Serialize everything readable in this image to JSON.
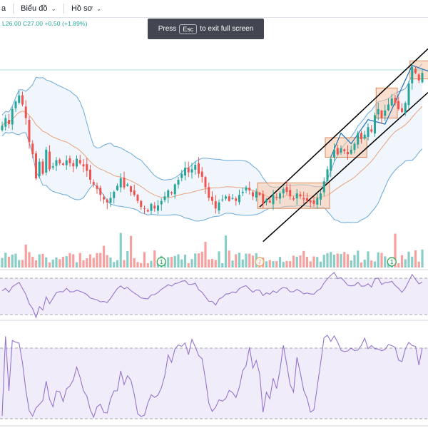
{
  "toolbar": {
    "partial_label": "a",
    "chart_menu_label": "Biểu đồ",
    "profile_menu_label": "Hồ sơ"
  },
  "ohlc_line": "L26.00  C27.00  +0.50 (+1.89%)",
  "notice": {
    "prefix": "Press",
    "key": "Esc",
    "suffix": "to exit full screen"
  },
  "colors": {
    "up": "#26a69a",
    "down": "#ef5350",
    "band": "#6aa9d8",
    "band_fill": "#e3eef9",
    "ma": "#e8a37c",
    "osc_line": "#9575cd",
    "osc_fill": "#f1ecf9"
  },
  "chart_data": {
    "type": "candlestick",
    "price_panel": {
      "closes": [
        23.5,
        24.0,
        23.6,
        24.6,
        25.1,
        25.5,
        24.9,
        24.0,
        22.4,
        21.6,
        20.0,
        21.1,
        20.3,
        21.9,
        20.6,
        20.8,
        21.2,
        21.0,
        20.9,
        21.2,
        21.0,
        20.8,
        21.3,
        21.0,
        20.8,
        20.5,
        19.9,
        19.6,
        19.3,
        18.9,
        18.6,
        18.4,
        18.7,
        19.1,
        19.5,
        20.0,
        19.4,
        19.6,
        19.1,
        18.9,
        18.5,
        18.1,
        18.0,
        17.8,
        18.3,
        18.0,
        18.2,
        18.5,
        18.8,
        19.2,
        19.0,
        19.6,
        19.9,
        20.3,
        20.7,
        20.4,
        20.6,
        20.9,
        20.3,
        20.1,
        19.4,
        18.7,
        18.5,
        18.0,
        18.4,
        18.6,
        18.8,
        18.5,
        18.7,
        18.5,
        18.9,
        19.1,
        19.4,
        19.2,
        18.8,
        19.1,
        18.9,
        18.3,
        18.6,
        18.4,
        18.9,
        18.7,
        19.0,
        19.3,
        19.1,
        18.8,
        18.6,
        19.0,
        18.8,
        18.6,
        18.5,
        18.4,
        18.3,
        18.7,
        19.0,
        19.8,
        20.6,
        21.3,
        21.9,
        21.6,
        22.0,
        21.8,
        21.6,
        21.9,
        22.3,
        23.0,
        22.6,
        22.9,
        23.4,
        23.1,
        24.2,
        24.6,
        24.0,
        24.5,
        24.9,
        25.3,
        25.0,
        24.6,
        24.4,
        25.0,
        26.3,
        27.4,
        27.0,
        26.5,
        27.0
      ],
      "volume_markers": [
        "1",
        "7",
        "1"
      ]
    },
    "oscillator_1": {
      "bands": [
        "upper",
        "lower"
      ]
    },
    "oscillator_2": {
      "bands": [
        "upper",
        "lower"
      ]
    }
  }
}
